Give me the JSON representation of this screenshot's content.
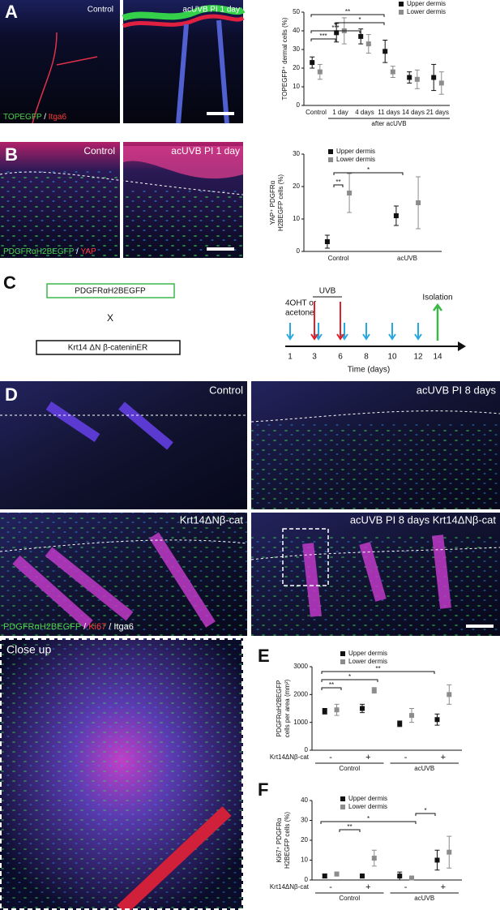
{
  "panels": {
    "a": "A",
    "b": "B",
    "c": "C",
    "d": "D",
    "e": "E",
    "f": "F"
  },
  "images": {
    "a": {
      "left": "Control",
      "right": "acUVB PI 1 day",
      "stain": [
        {
          "text": "TOPEGFP",
          "color": "#4fd14f"
        },
        {
          "text": " / ",
          "color": "#ffffff"
        },
        {
          "text": "Itga6",
          "color": "#ff3b3b"
        }
      ]
    },
    "b": {
      "left": "Control",
      "right": "acUVB PI 1 day",
      "stain": [
        {
          "text": "PDGFRαH2BEGFP",
          "color": "#4fd14f"
        },
        {
          "text": " / ",
          "color": "#ffffff"
        },
        {
          "text": "YAP",
          "color": "#ff3b3b"
        }
      ]
    },
    "d": {
      "top_left": "Control",
      "top_right": "acUVB PI 8 days",
      "bottom_left": "Krt14ΔNβ-cat",
      "bottom_right": "acUVB PI 8 days Krt14ΔNβ-cat",
      "stain": [
        {
          "text": "PDGFRαH2BEGFP",
          "color": "#4fd14f"
        },
        {
          "text": " / ",
          "color": "#ffffff"
        },
        {
          "text": "Ki67",
          "color": "#ff3b3b"
        },
        {
          "text": " / ",
          "color": "#ffffff"
        },
        {
          "text": "Itga6",
          "color": "#ffffff"
        }
      ],
      "close_up": "Close up"
    }
  },
  "diagram": {
    "mouse_line_1": "PDGFRαH2BEGFP",
    "cross": "X",
    "mouse_line_2": "Krt14 ΔN β-cateninER",
    "treatment": [
      "4OHT or",
      "acetone"
    ],
    "uvb": "UVB",
    "isolation": "Isolation",
    "days": [
      "1",
      "3",
      "6",
      "8",
      "10",
      "12",
      "14"
    ],
    "axis_label": "Time (days)"
  },
  "chart_data": [
    {
      "type": "dot",
      "y_label": "TOPEGFP⁺ dermal cells (%)",
      "categories": [
        "Control",
        "1 day",
        "4 days",
        "11 days",
        "14 days",
        "21 days"
      ],
      "group_label": "after acUVB",
      "series": [
        {
          "name": "Upper dermis",
          "color": "#111111",
          "values": [
            23,
            39,
            37,
            29,
            15,
            15
          ],
          "errors": [
            3,
            5,
            4,
            6,
            3,
            7
          ]
        },
        {
          "name": "Lower dermis",
          "color": "#8c8c8c",
          "values": [
            18,
            40,
            33,
            18,
            14,
            12
          ],
          "errors": [
            4,
            7,
            5,
            3,
            5,
            6
          ]
        }
      ],
      "ylim": [
        0,
        50
      ],
      "yticks": [
        0,
        10,
        20,
        30,
        40,
        50
      ],
      "significance": [
        "***",
        "***",
        "*",
        "**"
      ]
    },
    {
      "type": "dot",
      "y_label": [
        "YAP⁺ PDGFRα",
        "H2BEGFP cells (%)"
      ],
      "categories": [
        "Control",
        "acUVB"
      ],
      "series": [
        {
          "name": "Upper dermis",
          "color": "#111111",
          "values": [
            3,
            11
          ],
          "errors": [
            2,
            3
          ]
        },
        {
          "name": "Lower dermis",
          "color": "#8c8c8c",
          "values": [
            18,
            15
          ],
          "errors": [
            6,
            8
          ]
        }
      ],
      "ylim": [
        0,
        30
      ],
      "yticks": [
        0,
        10,
        20,
        30
      ],
      "significance": [
        "**",
        "*"
      ]
    },
    {
      "type": "dot",
      "y_label": [
        "PDGFRαH2BEGFP",
        "cells per area (mm²)"
      ],
      "categories": [
        "-",
        "+",
        "-",
        "+"
      ],
      "group_labels": [
        "Control",
        "acUVB"
      ],
      "row_label": "Krt14ΔNβ-cat",
      "series": [
        {
          "name": "Upper dermis",
          "color": "#111111",
          "values": [
            1400,
            1500,
            950,
            1100
          ],
          "errors": [
            100,
            150,
            100,
            200
          ]
        },
        {
          "name": "Lower dermis",
          "color": "#8c8c8c",
          "values": [
            1450,
            2150,
            1250,
            2000
          ],
          "errors": [
            200,
            100,
            250,
            350
          ]
        }
      ],
      "ylim": [
        0,
        3000
      ],
      "yticks": [
        0,
        1000,
        2000,
        3000
      ],
      "significance": [
        "**",
        "*",
        "**"
      ]
    },
    {
      "type": "dot",
      "y_label": [
        "Ki67⁺ PDGFRα",
        "H2BEGFP cells (%)"
      ],
      "categories": [
        "-",
        "+",
        "-",
        "+"
      ],
      "group_labels": [
        "Control",
        "acUVB"
      ],
      "row_label": "Krt14ΔNβ-cat",
      "series": [
        {
          "name": "Upper dermis",
          "color": "#111111",
          "values": [
            2,
            2,
            2,
            10
          ],
          "errors": [
            1,
            1,
            2,
            5
          ]
        },
        {
          "name": "Lower dermis",
          "color": "#8c8c8c",
          "values": [
            3,
            11,
            1,
            14
          ],
          "errors": [
            1,
            4,
            1,
            8
          ]
        }
      ],
      "ylim": [
        0,
        40
      ],
      "yticks": [
        0,
        10,
        20,
        30,
        40
      ],
      "significance": [
        "**",
        "*",
        "*"
      ]
    }
  ]
}
